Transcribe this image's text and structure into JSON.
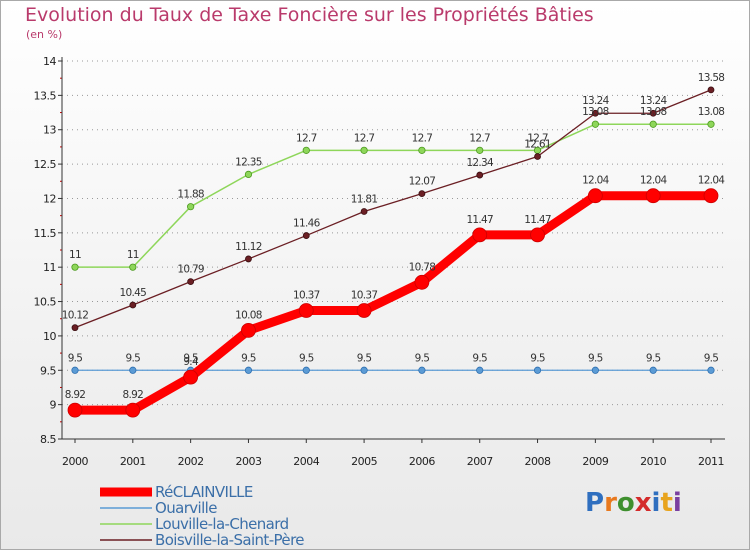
{
  "title": "Evolution du Taux de Taxe Foncière sur les Propriétés Bâties",
  "subtitle": "(en %)",
  "logo_text": "Proxiti",
  "colors": {
    "title": "#b93a6b",
    "axis": "#333333",
    "grid": "#999999"
  },
  "chart_data": {
    "type": "line",
    "title": "Evolution du Taux de Taxe Foncière sur les Propriétés Bâties",
    "ylabel": "(en %)",
    "xlabel": "",
    "ylim": [
      8.5,
      14
    ],
    "yticks": [
      "8.5",
      "9",
      "9.5",
      "10",
      "10.5",
      "11",
      "11.5",
      "12",
      "12.5",
      "13",
      "13.5",
      "14"
    ],
    "categories": [
      "2000",
      "2001",
      "2002",
      "2003",
      "2004",
      "2005",
      "2006",
      "2007",
      "2008",
      "2009",
      "2010",
      "2011"
    ],
    "legend_position": "bottom-left",
    "series": [
      {
        "name": "RéCLAINVILLE",
        "color": "#ff0000",
        "values": [
          8.92,
          8.92,
          9.4,
          10.08,
          10.37,
          10.37,
          10.78,
          11.47,
          11.47,
          12.04,
          12.04,
          12.04
        ],
        "labels": [
          "8.92",
          "8.92",
          "9.4",
          "10.08",
          "10.37",
          "10.37",
          "10.78",
          "11.47",
          "11.47",
          "12.04",
          "12.04",
          "12.04"
        ]
      },
      {
        "name": "Ouarville",
        "color": "#5b9bd5",
        "values": [
          9.5,
          9.5,
          9.5,
          9.5,
          9.5,
          9.5,
          9.5,
          9.5,
          9.5,
          9.5,
          9.5,
          9.5
        ],
        "labels": [
          "9.5",
          "9.5",
          "9.5",
          "9.5",
          "9.5",
          "9.5",
          "9.5",
          "9.5",
          "9.5",
          "9.5",
          "9.5",
          "9.5"
        ]
      },
      {
        "name": "Louville-la-Chenard",
        "color": "#8ed65a",
        "values": [
          11,
          11,
          11.88,
          12.35,
          12.7,
          12.7,
          12.7,
          12.7,
          12.7,
          13.08,
          13.08,
          13.08
        ],
        "labels": [
          "11",
          "11",
          "11.88",
          "12.35",
          "12.7",
          "12.7",
          "12.7",
          "12.7",
          "12.7",
          "13.08",
          "13.08",
          "13.08"
        ]
      },
      {
        "name": "Boisville-la-Saint-Père",
        "color": "#6b1f24",
        "values": [
          10.12,
          10.45,
          10.79,
          11.12,
          11.46,
          11.81,
          12.07,
          12.34,
          12.61,
          13.24,
          13.24,
          13.58
        ],
        "labels": [
          "10.12",
          "10.45",
          "10.79",
          "11.12",
          "11.46",
          "11.81",
          "12.07",
          "12.34",
          "12.61",
          "13.24",
          "13.24",
          "13.58"
        ]
      }
    ]
  }
}
